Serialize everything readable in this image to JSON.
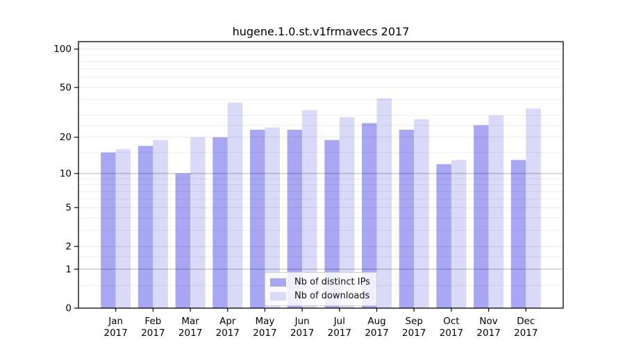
{
  "chart_data": {
    "type": "bar",
    "title": "hugene.1.0.st.v1frmavecs 2017",
    "categories": [
      "Jan",
      "Feb",
      "Mar",
      "Apr",
      "May",
      "Jun",
      "Jul",
      "Aug",
      "Sep",
      "Oct",
      "Nov",
      "Dec"
    ],
    "x_tick_second_line": "2017",
    "series": [
      {
        "name": "Nb of distinct IPs",
        "color": "#a7a7f4",
        "values": [
          15,
          17,
          10,
          20,
          23,
          23,
          19,
          26,
          23,
          12,
          25,
          13
        ]
      },
      {
        "name": "Nb of downloads",
        "color": "#d9d9f8",
        "values": [
          16,
          19,
          20,
          38,
          24,
          33,
          29,
          41,
          28,
          13,
          30,
          34
        ]
      }
    ],
    "yscale": "log10(1+x)",
    "ylim": [
      0,
      113
    ],
    "yticks": [
      0,
      1,
      2,
      5,
      10,
      20,
      50,
      100
    ],
    "emphasized_gridlines": [
      1,
      10
    ],
    "minor_gridlines": [
      0.5,
      1.5,
      3,
      4,
      6,
      7,
      8,
      9,
      15,
      25,
      30,
      40,
      60,
      70,
      80,
      90
    ],
    "grid": true,
    "legend_position": "bottom-center",
    "axis_color": "#000000",
    "background_color": "#ffffff"
  }
}
